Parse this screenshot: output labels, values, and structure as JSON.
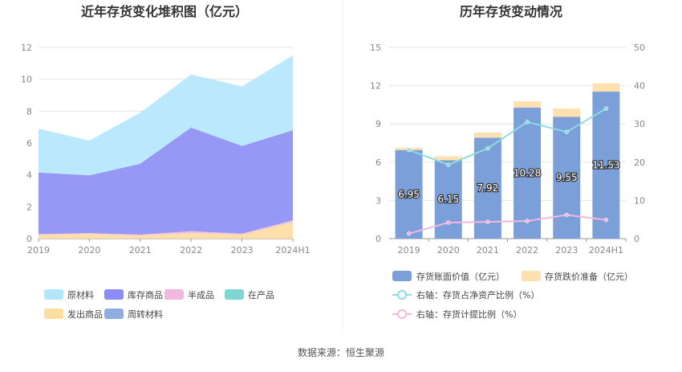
{
  "left_chart": {
    "title": "近年存货变化堆积图（亿元）",
    "legend": [
      {
        "name": "原材料",
        "color": "#b3e5fc"
      },
      {
        "name": "库存商品",
        "color": "#8c8cf5"
      },
      {
        "name": "半成品",
        "color": "#f0b8dc"
      },
      {
        "name": "在产品",
        "color": "#7fd4d4"
      },
      {
        "name": "发出商品",
        "color": "#ffdca0"
      },
      {
        "name": "周转材料",
        "color": "#8faee0"
      }
    ]
  },
  "right_chart": {
    "title": "历年存货变动情况",
    "legend": [
      {
        "name": "存货账面价值（亿元）",
        "color": "#7b9fd8"
      },
      {
        "name": "存货跌价准备（亿元）",
        "color": "#ffe0b0"
      },
      {
        "name": "右轴：存货占净资产比例（%）",
        "color": "#8ddde0"
      },
      {
        "name": "右轴：存货计提比例（%）",
        "color": "#f2b8dc"
      }
    ]
  },
  "source": "数据来源：恒生聚源",
  "chart_data": [
    {
      "type": "area",
      "stacked": true,
      "title": "近年存货变化堆积图（亿元）",
      "categories": [
        "2019",
        "2020",
        "2021",
        "2022",
        "2023",
        "2024H1"
      ],
      "ylim": [
        0,
        12
      ],
      "yticks": [
        0,
        2,
        4,
        6,
        8,
        10,
        12
      ],
      "grid": true,
      "legend_position": "bottom",
      "series": [
        {
          "name": "发出商品",
          "color": "#ffdca0",
          "values": [
            0.25,
            0.3,
            0.2,
            0.35,
            0.25,
            1.05
          ]
        },
        {
          "name": "半成品",
          "color": "#f0b8dc",
          "values": [
            0.03,
            0.05,
            0.05,
            0.12,
            0.07,
            0.1
          ]
        },
        {
          "name": "在产品",
          "color": "#7fd4d4",
          "values": [
            0,
            0,
            0,
            0,
            0,
            0
          ]
        },
        {
          "name": "周转材料",
          "color": "#8faee0",
          "values": [
            0,
            0,
            0,
            0,
            0,
            0
          ]
        },
        {
          "name": "库存商品",
          "color": "#8c8cf5",
          "values": [
            3.87,
            3.62,
            4.45,
            6.5,
            5.5,
            5.65
          ]
        },
        {
          "name": "原材料",
          "color": "#b3e5fc",
          "values": [
            2.75,
            2.18,
            3.2,
            3.33,
            3.73,
            4.7
          ]
        }
      ]
    },
    {
      "type": "bar",
      "stacked": true,
      "title": "历年存货变动情况",
      "categories": [
        "2019",
        "2020",
        "2021",
        "2022",
        "2023",
        "2024H1"
      ],
      "ylim": [
        0,
        15
      ],
      "yticks": [
        0,
        3,
        6,
        9,
        12,
        15
      ],
      "y2lim": [
        0,
        50
      ],
      "y2ticks": [
        0,
        10,
        20,
        30,
        40,
        50
      ],
      "grid": true,
      "legend_position": "bottom",
      "series": [
        {
          "name": "存货账面价值（亿元）",
          "color": "#7b9fd8",
          "axis": "left",
          "values": [
            6.95,
            6.15,
            7.92,
            10.28,
            9.55,
            11.53
          ],
          "labels": [
            "6.95",
            "6.15",
            "7.92",
            "10.28",
            "9.55",
            "11.53"
          ]
        },
        {
          "name": "存货跌价准备（亿元）",
          "color": "#ffe0b0",
          "axis": "left",
          "values": [
            0.18,
            0.3,
            0.4,
            0.5,
            0.65,
            0.65
          ]
        },
        {
          "name": "右轴：存货占净资产比例（%）",
          "type": "line",
          "color": "#8ddde0",
          "axis": "right",
          "values": [
            23.2,
            19.3,
            23.6,
            30.5,
            27.9,
            34
          ]
        },
        {
          "name": "右轴：存货计提比例（%）",
          "type": "line",
          "color": "#f2b8dc",
          "axis": "right",
          "values": [
            1.3,
            4.2,
            4.4,
            4.6,
            6.2,
            4.9
          ]
        }
      ]
    }
  ]
}
